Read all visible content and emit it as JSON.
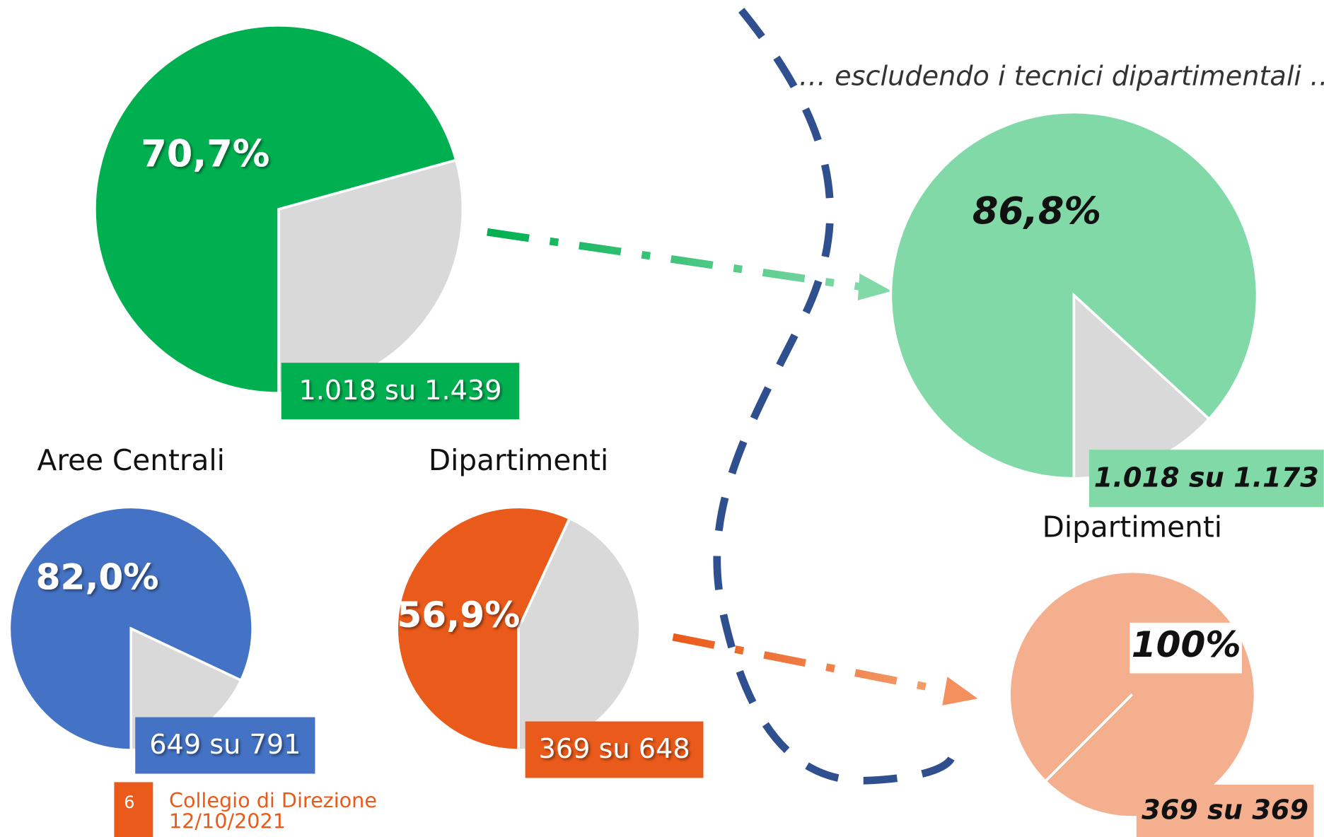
{
  "chart_data": [
    {
      "type": "pie",
      "values": [
        70.7,
        29.3
      ],
      "value_labels": [
        "70,7%",
        null
      ],
      "colors": [
        "#00b050",
        "#d9d9d9"
      ],
      "annotation": "1.018 su 1.439"
    },
    {
      "type": "pie",
      "values": [
        86.8,
        13.2
      ],
      "value_labels": [
        "86,8%",
        null
      ],
      "colors": [
        "#82d9a8",
        "#d9d9d9"
      ],
      "annotation": "1.018 su 1.173"
    },
    {
      "type": "pie",
      "title": "Aree Centrali",
      "values": [
        82.0,
        18.0
      ],
      "value_labels": [
        "82,0%",
        null
      ],
      "colors": [
        "#4472c4",
        "#d9d9d9"
      ],
      "annotation": "649 su 791"
    },
    {
      "type": "pie",
      "title": "Dipartimenti",
      "values": [
        56.9,
        43.1
      ],
      "value_labels": [
        "56,9%",
        null
      ],
      "colors": [
        "#ea5a1a",
        "#d9d9d9"
      ],
      "annotation": "369 su 648"
    },
    {
      "type": "pie",
      "title": "Dipartimenti",
      "values": [
        100
      ],
      "value_labels": [
        "100%"
      ],
      "colors": [
        "#f4b08e"
      ],
      "annotation": "369 su 369"
    }
  ],
  "header": "… escludendo i tecnici dipartimentali …",
  "footer": {
    "page": "6",
    "lines": [
      "Collegio di Direzione",
      "12/10/2021"
    ]
  }
}
